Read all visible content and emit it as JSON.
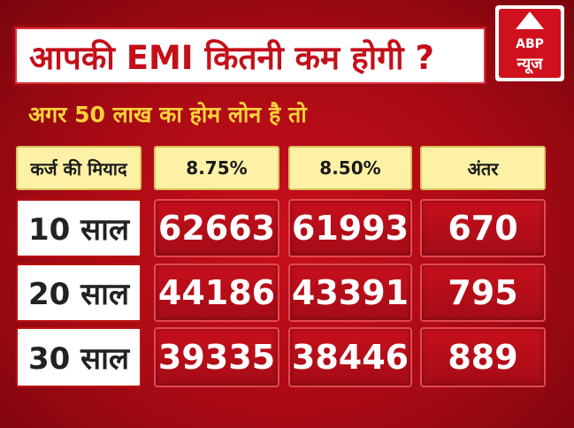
{
  "title": "आपकी EMI कितनी कम होगी ?",
  "subtitle": "अगर 50 लाख का होम लोन है तो",
  "logo": {
    "abp": "ABP",
    "news": "न्यूज"
  },
  "table": {
    "headers": [
      "कर्ज की मियाद",
      "8.75%",
      "8.50%",
      "अंतर"
    ],
    "rows": [
      {
        "tenure": "10 साल",
        "emi_875": "62663",
        "emi_850": "61993",
        "diff": "670"
      },
      {
        "tenure": "20 साल",
        "emi_875": "44186",
        "emi_850": "43391",
        "diff": "795"
      },
      {
        "tenure": "30 साल",
        "emi_875": "39335",
        "emi_850": "38446",
        "diff": "889"
      }
    ]
  },
  "colors": {
    "background": "#b00c16",
    "title_text": "#c4101a",
    "subtitle": "#ffd23a",
    "header_bg": "#fdf1a6"
  }
}
